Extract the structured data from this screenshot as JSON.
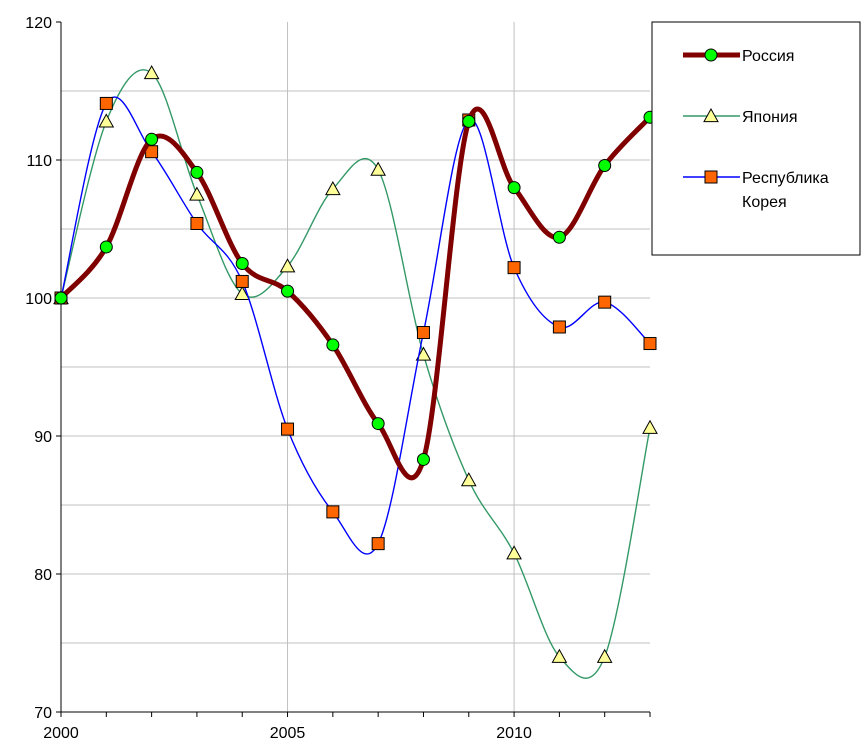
{
  "chart_data": {
    "type": "line",
    "title": "",
    "xlabel": "",
    "ylabel": "",
    "xlim": [
      2000,
      2013
    ],
    "ylim": [
      70,
      120
    ],
    "x_ticks": [
      "2000",
      "2005",
      "2010"
    ],
    "y_ticks": [
      "70",
      "80",
      "90",
      "100",
      "110",
      "120"
    ],
    "grid": true,
    "legend_position": "top-right",
    "x": [
      2000,
      2001,
      2002,
      2003,
      2004,
      2005,
      2006,
      2007,
      2008,
      2009,
      2010,
      2011,
      2012,
      2013
    ],
    "series": [
      {
        "name": "Россия",
        "color": "#800000",
        "marker": "circle",
        "marker_fill": "#00ff00",
        "values": [
          100.0,
          103.7,
          111.5,
          109.1,
          102.5,
          100.5,
          96.6,
          90.9,
          88.3,
          112.8,
          108.0,
          104.4,
          109.6,
          113.1
        ]
      },
      {
        "name": "Япония",
        "color": "#339966",
        "marker": "triangle",
        "marker_fill": "#ffff99",
        "values": [
          100.0,
          112.8,
          116.3,
          107.5,
          100.3,
          102.3,
          107.9,
          109.3,
          95.9,
          86.8,
          81.5,
          74.0,
          74.0,
          90.6
        ]
      },
      {
        "name": "Республика Корея",
        "label_lines": [
          "Республика",
          "Корея"
        ],
        "color": "#0000ff",
        "marker": "square",
        "marker_fill": "#ff6600",
        "values": [
          100.0,
          114.1,
          110.6,
          105.4,
          101.2,
          90.5,
          84.5,
          82.2,
          97.5,
          112.9,
          102.2,
          97.9,
          99.7,
          96.7
        ]
      }
    ]
  }
}
